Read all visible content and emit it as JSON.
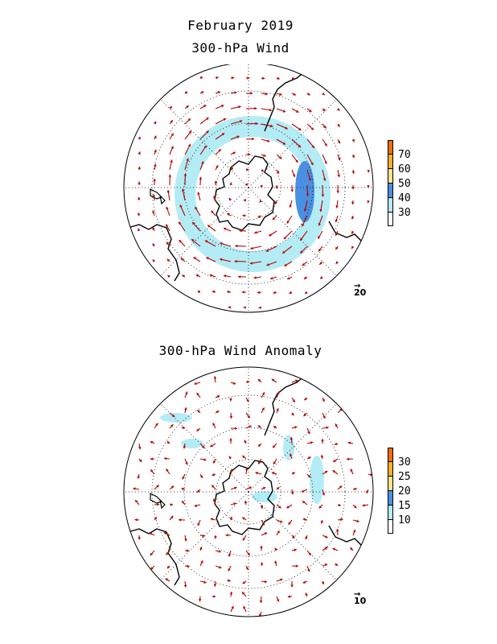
{
  "titles": {
    "line1": "February 2019",
    "line2": "300-hPa Wind",
    "line3": "300-hPa Wind Anomaly"
  },
  "colors": {
    "vector": "#b50000",
    "coast": "#000000",
    "grid": "#000000",
    "scale": [
      "#ffffff",
      "#b3ecf5",
      "#4a90e2",
      "#fbe588",
      "#f7b02f",
      "#f46d0f"
    ]
  },
  "panel_top": {
    "name": "300-hPa Wind",
    "colorbar_ticks": [
      "30",
      "40",
      "50",
      "60",
      "70"
    ],
    "reference_vector": "20"
  },
  "panel_bottom": {
    "name": "300-hPa Wind Anomaly",
    "colorbar_ticks": [
      "10",
      "15",
      "20",
      "25",
      "30"
    ],
    "reference_vector": "10"
  }
}
